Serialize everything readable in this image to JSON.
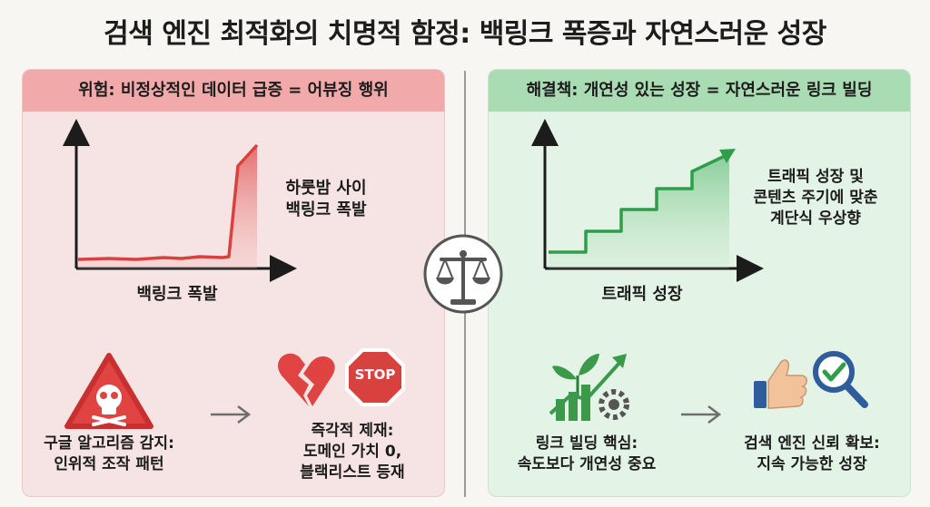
{
  "title": "검색 엔진 최적화의 치명적 함정: 백링크 폭증과 자연스러운 성장",
  "left_panel": {
    "header": "위험: 비정상적인 데이터 급증 = 어뷰징 행위",
    "chart_label": "백링크 폭발",
    "spike_caption_1": "하룻밤 사이",
    "spike_caption_2": "백링크 폭발",
    "detect_line_1": "구글 알고리즘 감지:",
    "detect_line_2": "인위적 조작 패턴",
    "stop_sign_text": "STOP",
    "penalty_line_1": "즉각적 제재:",
    "penalty_line_2": "도메인 가치 0,",
    "penalty_line_3": "블랙리스트 등재",
    "accent_color": "#d9413f"
  },
  "right_panel": {
    "header": "해결책: 개연성 있는 성장 = 자연스러운 링크 빌딩",
    "chart_label": "트래픽 성장",
    "growth_caption_1": "트래픽 성장 및",
    "growth_caption_2": "콘텐츠 주기에 맞춘",
    "growth_caption_3": "계단식 우상향",
    "build_line_1": "링크 빌딩 핵심:",
    "build_line_2": "속도보다 개연성 중요",
    "trust_line_1": "검색 엔진 신뢰 확보:",
    "trust_line_2": "지속 가능한 성장",
    "accent_color": "#2e9e4a"
  },
  "center_icon": "balance-scale-icon"
}
